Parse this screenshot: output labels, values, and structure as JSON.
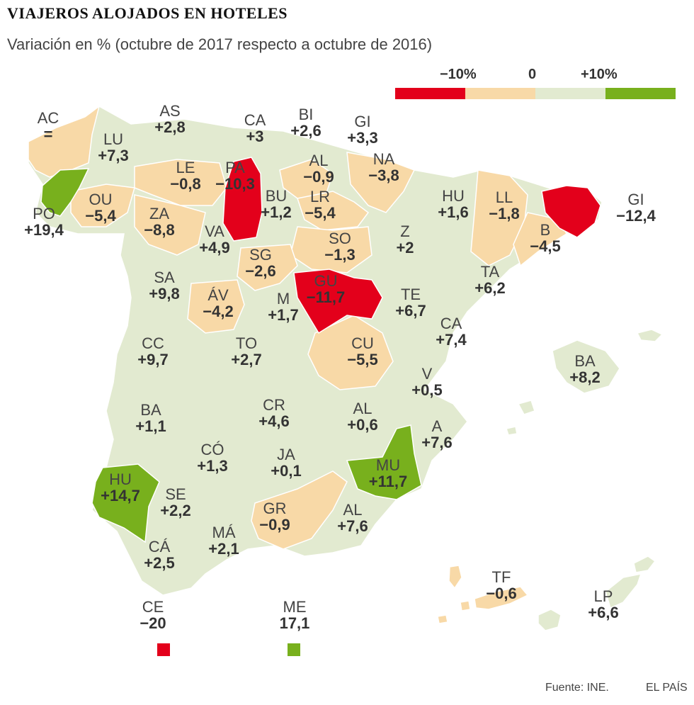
{
  "title": "VIAJEROS ALOJADOS EN HOTELES",
  "subtitle": "Variación en % (octubre de 2017 respecto a octubre de 2016)",
  "legend": {
    "labels": [
      "−10%",
      "0",
      "+10%"
    ],
    "colors": [
      "#e3001b",
      "#f8d9a7",
      "#e2ead0",
      "#78b01d"
    ]
  },
  "colors": {
    "red": "#e3001b",
    "orange": "#f8d9a7",
    "light": "#e2ead0",
    "green": "#78b01d",
    "border": "#ffffff"
  },
  "provinces": [
    {
      "code": "AC",
      "value": "=",
      "cls": "orange"
    },
    {
      "code": "LU",
      "value": "+7,3",
      "cls": "light"
    },
    {
      "code": "AS",
      "value": "+2,8",
      "cls": "light"
    },
    {
      "code": "CA",
      "value": "+3",
      "cls": "light"
    },
    {
      "code": "BI",
      "value": "+2,6",
      "cls": "light"
    },
    {
      "code": "GI",
      "value": "+3,3",
      "cls": "light"
    },
    {
      "code": "NA",
      "value": "−3,8",
      "cls": "orange"
    },
    {
      "code": "AL",
      "value": "−0,9",
      "cls": "orange"
    },
    {
      "code": "LE",
      "value": "−0,8",
      "cls": "orange"
    },
    {
      "code": "PA",
      "value": "−10,3",
      "cls": "red"
    },
    {
      "code": "BU",
      "value": "+1,2",
      "cls": "light"
    },
    {
      "code": "LR",
      "value": "−5,4",
      "cls": "orange"
    },
    {
      "code": "PO",
      "value": "+19,4",
      "cls": "green"
    },
    {
      "code": "OU",
      "value": "−5,4",
      "cls": "orange"
    },
    {
      "code": "ZA",
      "value": "−8,8",
      "cls": "orange"
    },
    {
      "code": "VA",
      "value": "+4,9",
      "cls": "light"
    },
    {
      "code": "SG",
      "value": "−2,6",
      "cls": "orange"
    },
    {
      "code": "SO",
      "value": "−1,3",
      "cls": "orange"
    },
    {
      "code": "HU",
      "value": "+1,6",
      "cls": "light"
    },
    {
      "code": "LL",
      "value": "−1,8",
      "cls": "orange"
    },
    {
      "code": "GI",
      "value": "−12,4",
      "cls": "red"
    },
    {
      "code": "B",
      "value": "−4,5",
      "cls": "orange"
    },
    {
      "code": "Z",
      "value": "+2",
      "cls": "light"
    },
    {
      "code": "TA",
      "value": "+6,2",
      "cls": "light"
    },
    {
      "code": "SA",
      "value": "+9,8",
      "cls": "light"
    },
    {
      "code": "ÁV",
      "value": "−4,2",
      "cls": "orange"
    },
    {
      "code": "M",
      "value": "+1,7",
      "cls": "light"
    },
    {
      "code": "GU",
      "value": "−11,7",
      "cls": "red"
    },
    {
      "code": "TE",
      "value": "+6,7",
      "cls": "light"
    },
    {
      "code": "CA",
      "value": "+7,4",
      "cls": "light"
    },
    {
      "code": "CC",
      "value": "+9,7",
      "cls": "light"
    },
    {
      "code": "TO",
      "value": "+2,7",
      "cls": "light"
    },
    {
      "code": "CU",
      "value": "−5,5",
      "cls": "orange"
    },
    {
      "code": "V",
      "value": "+0,5",
      "cls": "light"
    },
    {
      "code": "BA",
      "value": "+8,2",
      "cls": "light"
    },
    {
      "code": "BA",
      "value": "+1,1",
      "cls": "light"
    },
    {
      "code": "CR",
      "value": "+4,6",
      "cls": "light"
    },
    {
      "code": "AL",
      "value": "+0,6",
      "cls": "light"
    },
    {
      "code": "A",
      "value": "+7,6",
      "cls": "light"
    },
    {
      "code": "CÓ",
      "value": "+1,3",
      "cls": "light"
    },
    {
      "code": "JA",
      "value": "+0,1",
      "cls": "light"
    },
    {
      "code": "MU",
      "value": "+11,7",
      "cls": "green"
    },
    {
      "code": "HU",
      "value": "+14,7",
      "cls": "green"
    },
    {
      "code": "SE",
      "value": "+2,2",
      "cls": "light"
    },
    {
      "code": "GR",
      "value": "−0,9",
      "cls": "orange"
    },
    {
      "code": "AL",
      "value": "+7,6",
      "cls": "light"
    },
    {
      "code": "MÁ",
      "value": "+2,1",
      "cls": "light"
    },
    {
      "code": "CÁ",
      "value": "+2,5",
      "cls": "light"
    },
    {
      "code": "TF",
      "value": "−0,6",
      "cls": "orange"
    },
    {
      "code": "LP",
      "value": "+6,6",
      "cls": "light"
    },
    {
      "code": "CE",
      "value": "−20",
      "cls": "red"
    },
    {
      "code": "ME",
      "value": "17,1",
      "cls": "green"
    }
  ],
  "source": "Fuente: INE.",
  "brand": "EL PAÍS"
}
